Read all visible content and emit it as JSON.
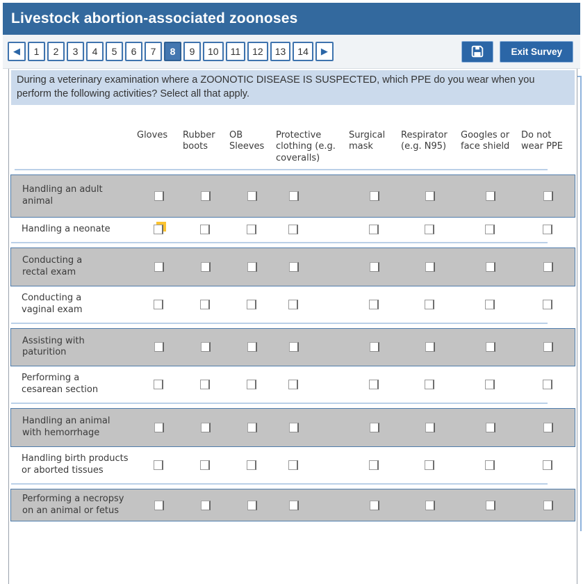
{
  "colors": {
    "titlebar": "#33699E",
    "button": "#2B66A7",
    "button_border": "#8FB3DC",
    "pg_border": "#3E73AE",
    "pg_selected": "#4477B0",
    "question_bg": "#CBDAEC",
    "row_gray": "#C3C3C3",
    "row_border": "#4E7BAA",
    "underline": "#BAD0E8",
    "focus": "#FBC330",
    "panel_border": "#9AA2AC",
    "toolbar_bg": "#F0F3F6"
  },
  "header": {
    "title": "Livestock abortion-associated zoonoses"
  },
  "toolbar": {
    "prev_icon": "◀",
    "next_icon": "▶",
    "pages": [
      "1",
      "2",
      "3",
      "4",
      "5",
      "6",
      "7",
      "8",
      "9",
      "10",
      "11",
      "12",
      "13",
      "14"
    ],
    "current_page": "8",
    "save_icon": "floppy-disk",
    "exit_label": "Exit Survey"
  },
  "question": {
    "text": "During a veterinary examination where a ZOONOTIC DISEASE IS SUSPECTED, which PPE do you wear when you perform the following activities? Select all that apply."
  },
  "matrix": {
    "columns": [
      "Gloves",
      "Rubber\nboots",
      "OB\nSleeves",
      "Protective\nclothing (e.g.\ncoveralls)",
      "Surgical\nmask",
      "Respirator\n(e.g. N95)",
      "Googles or\nface shield",
      "Do not\nwear PPE"
    ],
    "rows": [
      {
        "label": "Handling an adult\nanimal",
        "shaded": true
      },
      {
        "label": "Handling a neonate",
        "shaded": false
      },
      {
        "label": "Conducting a\nrectal exam",
        "shaded": true
      },
      {
        "label": "Conducting a\nvaginal exam",
        "shaded": false
      },
      {
        "label": "Assisting with\npaturition",
        "shaded": true
      },
      {
        "label": "Performing a\ncesarean section",
        "shaded": false
      },
      {
        "label": "Handling an animal\nwith hemorrhage",
        "shaded": true
      },
      {
        "label": "Handling birth products\nor aborted tissues",
        "shaded": false
      },
      {
        "label": "Performing a necropsy\non an animal or fetus",
        "shaded": true
      }
    ],
    "checkbox_state": "unchecked",
    "focused_checkbox": {
      "row_index": 1,
      "column_index": 0
    }
  }
}
